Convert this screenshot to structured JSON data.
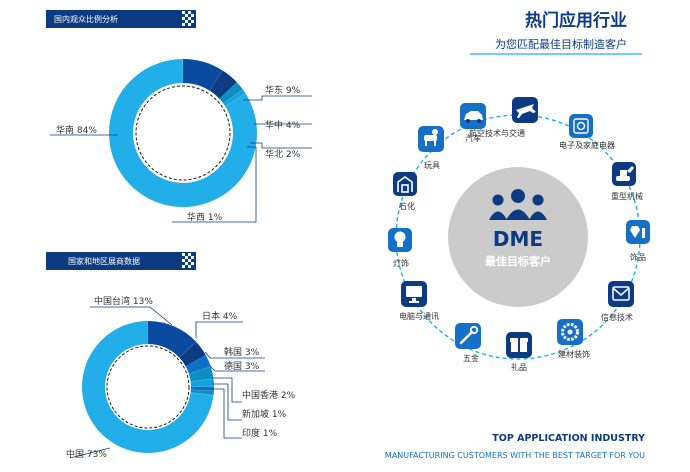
{
  "colors": {
    "navy": "#0d3b82",
    "deep": "#0a4aa0",
    "mid": "#0e6fc7",
    "teal": "#0b8fc0",
    "cyan": "#16a1dc",
    "light": "#22aee8",
    "gray_circle": "#cbcbcb",
    "icon_bg": "#1670c8"
  },
  "chart_data": [
    {
      "type": "pie",
      "variant": "donut",
      "title": "国内观众比例分析",
      "slices": [
        {
          "label": "华东",
          "value": 9,
          "text": "华东 9%"
        },
        {
          "label": "华中",
          "value": 4,
          "text": "华中 4%"
        },
        {
          "label": "华北",
          "value": 2,
          "text": "华北 2%"
        },
        {
          "label": "华西",
          "value": 1,
          "text": "华西 1%"
        },
        {
          "label": "华南",
          "value": 84,
          "text": "华南 84%"
        }
      ]
    },
    {
      "type": "pie",
      "variant": "donut",
      "title": "国家和地区展商数据",
      "slices": [
        {
          "label": "中国台湾",
          "value": 13,
          "text": "中国台湾 13%"
        },
        {
          "label": "日本",
          "value": 4,
          "text": "日本 4%"
        },
        {
          "label": "韩国",
          "value": 3,
          "text": "韩国 3%"
        },
        {
          "label": "德国",
          "value": 3,
          "text": "德国 3%"
        },
        {
          "label": "中国香港",
          "value": 2,
          "text": "中国香港 2%"
        },
        {
          "label": "新加坡",
          "value": 1,
          "text": "新加坡 1%"
        },
        {
          "label": "印度",
          "value": 1,
          "text": "印度 1%"
        },
        {
          "label": "中国",
          "value": 73,
          "text": "中国 73%"
        }
      ]
    }
  ],
  "industry": {
    "title": "热门应用行业",
    "subtitle": "为您匹配最佳目标制造客户",
    "center_logo": "DME",
    "center_text": "最佳目标客户",
    "items": [
      {
        "label": "航空技术与交通",
        "icon": "airplane-icon"
      },
      {
        "label": "电子及家庭电器",
        "icon": "appliance-icon"
      },
      {
        "label": "重型机械",
        "icon": "excavator-icon"
      },
      {
        "label": "饰品",
        "icon": "jewelry-icon"
      },
      {
        "label": "信息技术",
        "icon": "mail-icon"
      },
      {
        "label": "建材装饰",
        "icon": "gear-icon"
      },
      {
        "label": "礼品",
        "icon": "gift-icon"
      },
      {
        "label": "五金",
        "icon": "wrench-icon"
      },
      {
        "label": "电脑与通讯",
        "icon": "monitor-icon"
      },
      {
        "label": "灯饰",
        "icon": "bulb-icon"
      },
      {
        "label": "石化",
        "icon": "plant-icon"
      },
      {
        "label": "玩具",
        "icon": "toy-horse-icon"
      },
      {
        "label": "汽车",
        "icon": "car-icon"
      }
    ],
    "footer_title": "TOP APPLICATION INDUSTRY",
    "footer_subtitle": "MANUFACTURING CUSTOMERS WITH THE BEST TARGET FOR YOU"
  }
}
